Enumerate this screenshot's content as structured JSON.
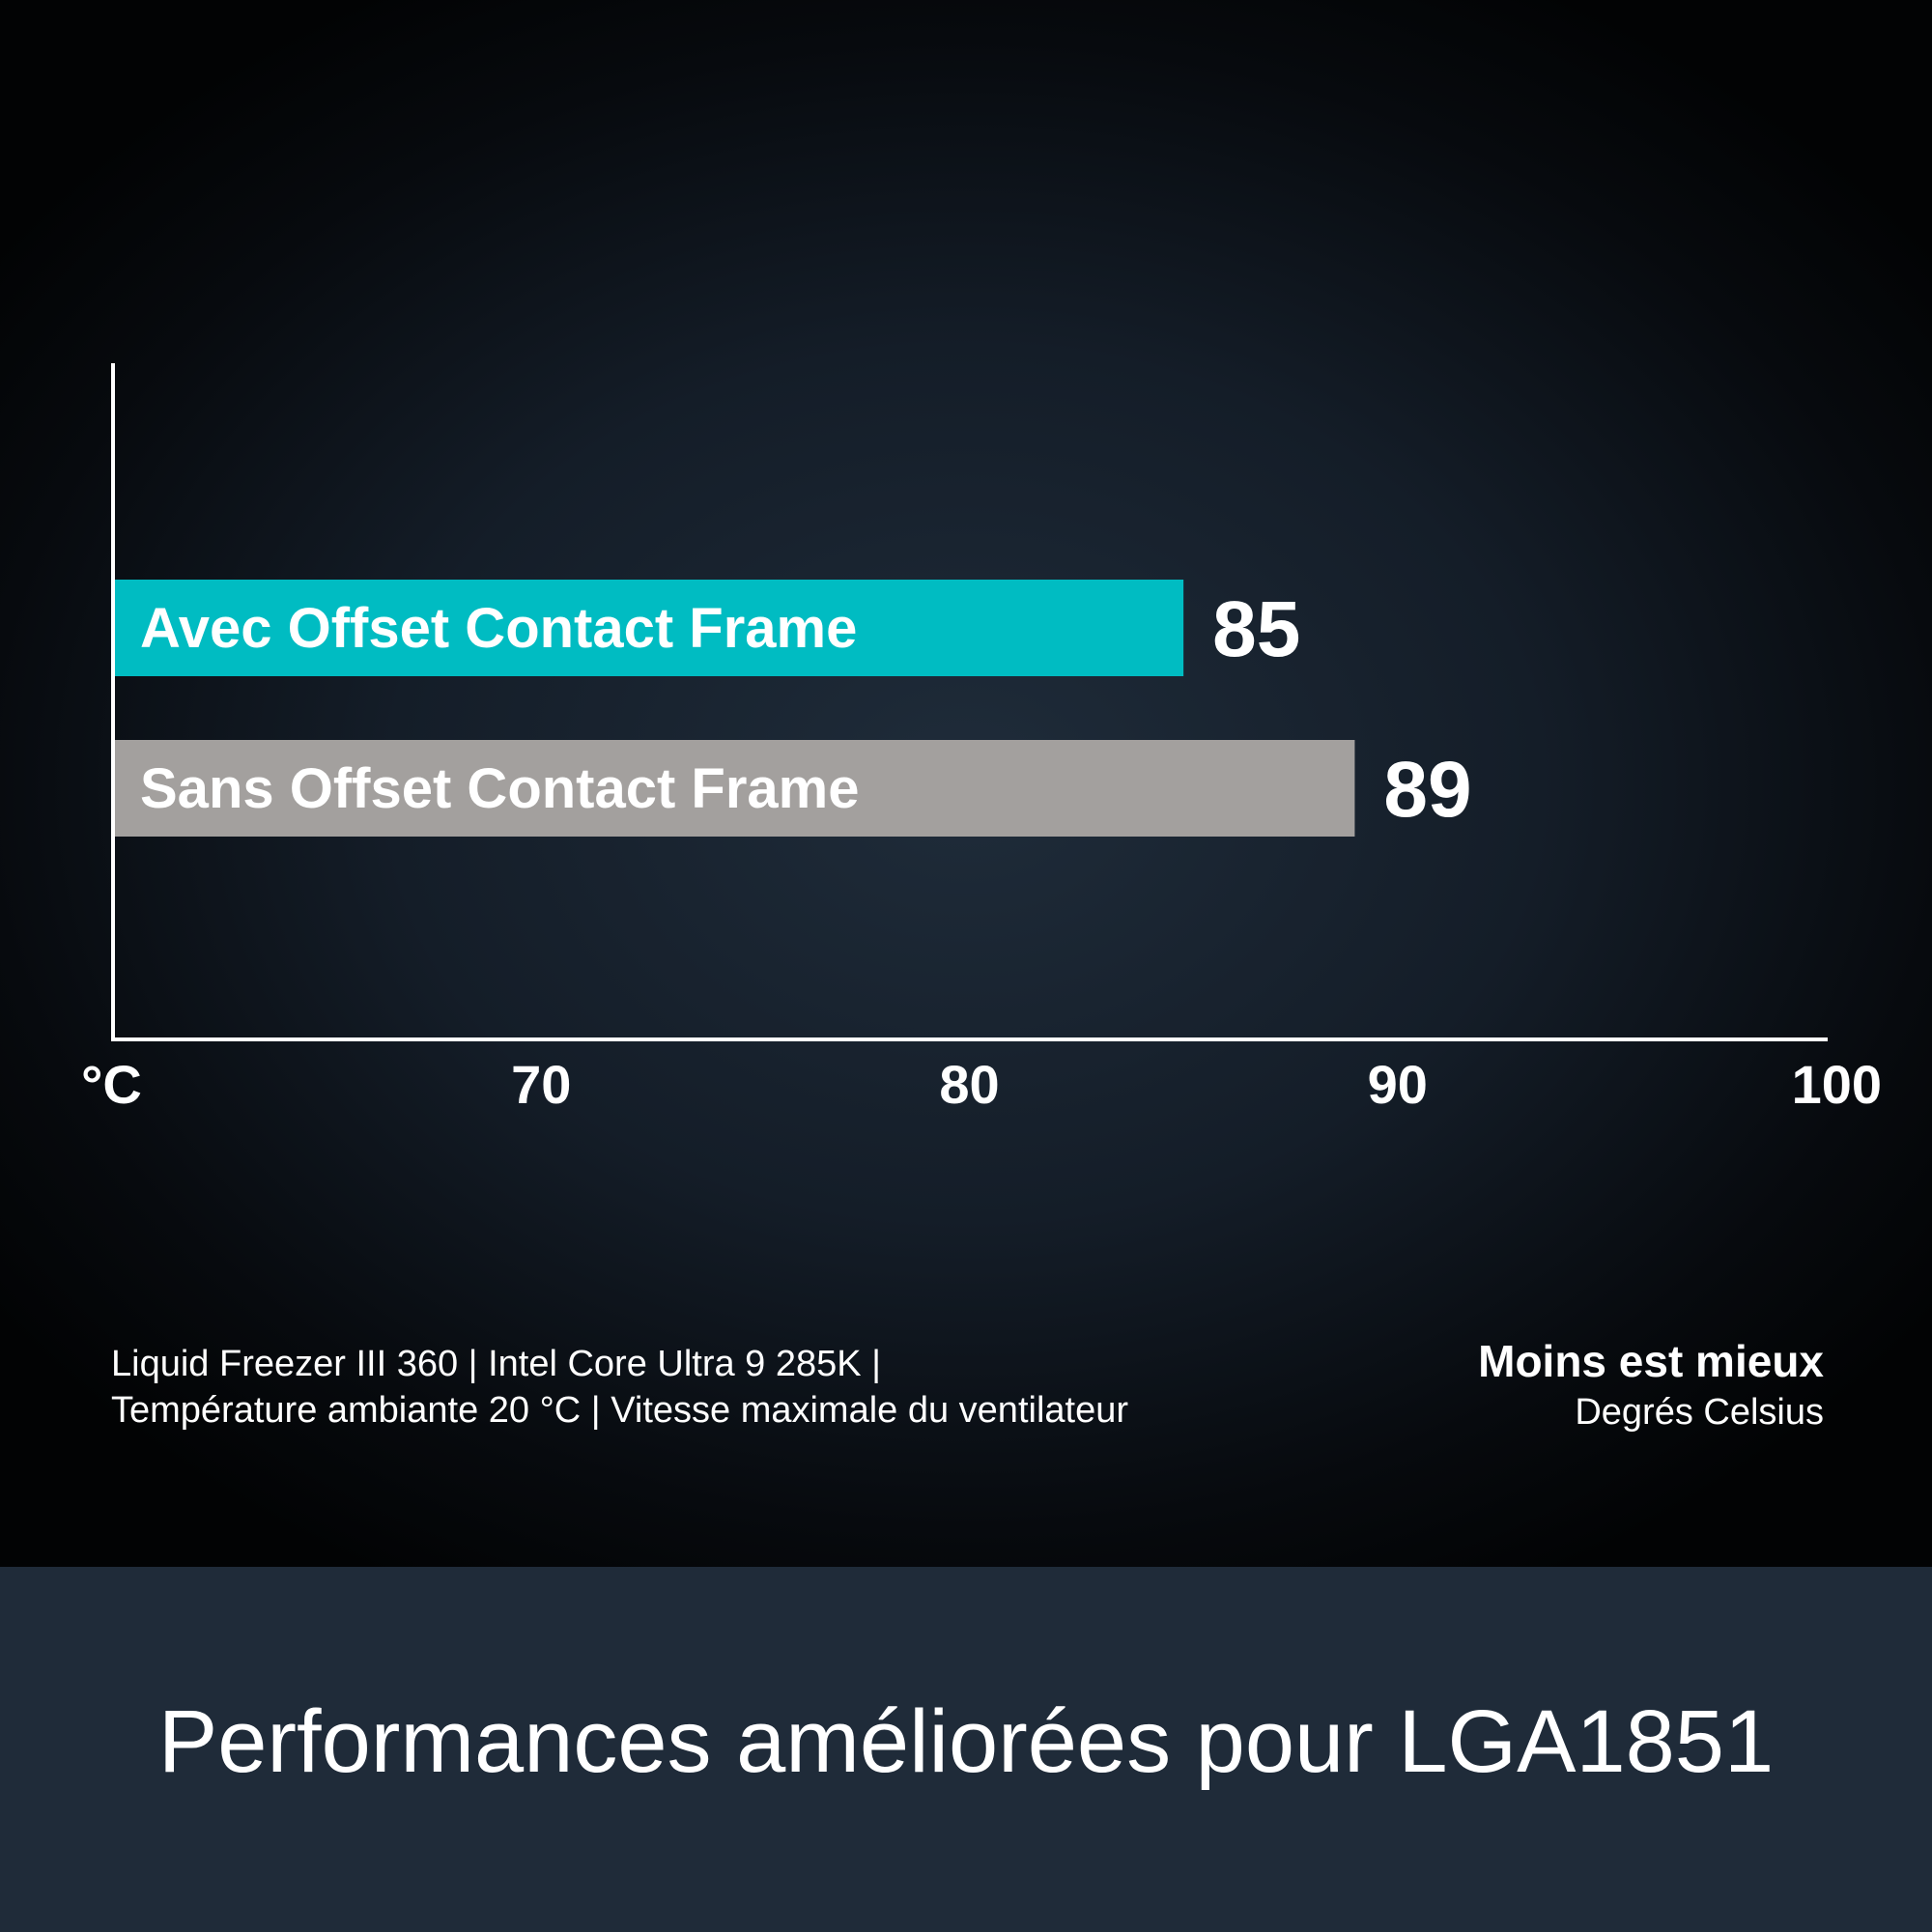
{
  "chart_data": {
    "type": "bar",
    "orientation": "horizontal",
    "categories": [
      "Avec Offset Contact Frame",
      "Sans Offset Contact Frame"
    ],
    "values": [
      85,
      89
    ],
    "value_labels": [
      "85",
      "89"
    ],
    "colors": [
      "#00bcc2",
      "#a3a09e"
    ],
    "x_ticks": [
      "°C",
      "70",
      "80",
      "90",
      "100"
    ],
    "xlim": [
      60,
      100
    ],
    "grid": false,
    "legend": "none"
  },
  "footnote": {
    "line1": "Liquid Freezer III 360 | Intel Core Ultra 9 285K |",
    "line2": "Température ambiante 20 °C | Vitesse maximale du ventilateur"
  },
  "note": {
    "title": "Moins est mieux",
    "subtitle": "Degrés Celsius"
  },
  "banner": {
    "title": "Performances améliorées pour LGA1851"
  },
  "colors": {
    "background": "#141d28",
    "banner": "#1f2b39",
    "axis": "#ffffff",
    "text": "#ffffff"
  }
}
